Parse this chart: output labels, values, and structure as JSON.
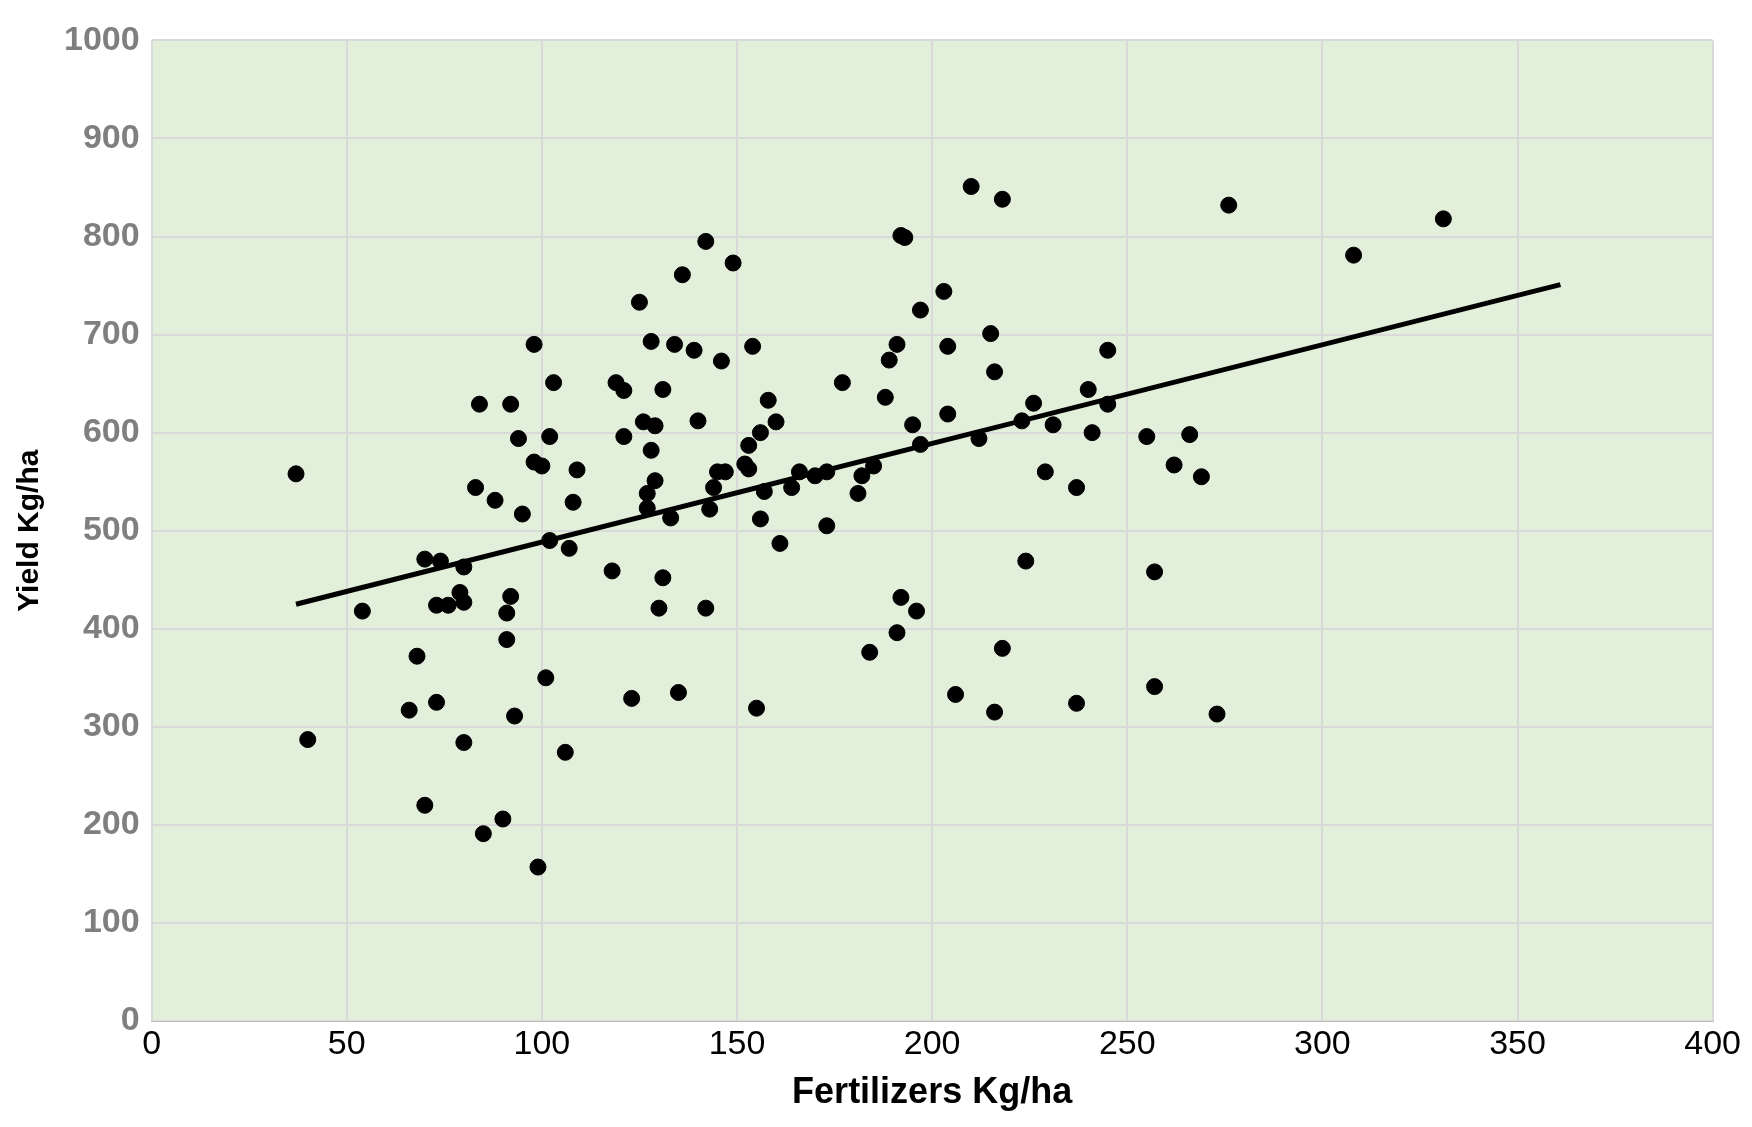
{
  "chart_data": {
    "type": "scatter",
    "xlabel": "Fertilizers Kg/ha",
    "ylabel": "Yield Kg/ha",
    "xlim": [
      0,
      400
    ],
    "xticks": [
      0,
      50,
      100,
      150,
      200,
      250,
      300,
      350,
      400
    ],
    "ylim": [
      0,
      1000
    ],
    "yticks": [
      0,
      100,
      200,
      300,
      400,
      500,
      600,
      700,
      800,
      900,
      1000
    ],
    "grid": true,
    "legend": false,
    "marker": "circle",
    "series": [
      {
        "type": "scatter",
        "color": "#000000",
        "x": [
          37,
          40,
          54,
          68,
          66,
          70,
          74,
          73,
          76,
          73,
          70,
          80,
          79,
          80,
          80,
          84,
          83,
          88,
          85,
          90,
          92,
          94,
          95,
          92,
          91,
          91,
          93,
          98,
          98,
          100,
          99,
          101,
          103,
          102,
          102,
          107,
          108,
          109,
          106,
          118,
          119,
          121,
          121,
          123,
          125,
          126,
          127,
          127,
          128,
          128,
          129,
          129,
          130,
          131,
          131,
          133,
          134,
          135,
          136,
          139,
          140,
          142,
          142,
          143,
          144,
          145,
          147,
          146,
          149,
          152,
          153,
          153,
          154,
          156,
          155,
          156,
          157,
          158,
          160,
          161,
          164,
          166,
          170,
          173,
          173,
          177,
          181,
          182,
          185,
          184,
          188,
          189,
          191,
          192,
          193,
          192,
          191,
          195,
          196,
          197,
          197,
          203,
          204,
          204,
          206,
          210,
          212,
          215,
          216,
          216,
          218,
          218,
          223,
          224,
          226,
          229,
          231,
          237,
          237,
          240,
          241,
          245,
          245,
          255,
          257,
          257,
          262,
          266,
          269,
          273,
          276,
          308,
          331
        ],
        "values": [
          558,
          287,
          418,
          372,
          317,
          471,
          469,
          424,
          424,
          325,
          220,
          463,
          437,
          427,
          284,
          629,
          544,
          531,
          191,
          206,
          629,
          594,
          517,
          433,
          416,
          389,
          311,
          690,
          570,
          566,
          157,
          350,
          651,
          596,
          490,
          482,
          529,
          562,
          274,
          459,
          651,
          643,
          596,
          329,
          733,
          611,
          538,
          523,
          693,
          582,
          607,
          551,
          421,
          452,
          644,
          513,
          690,
          335,
          761,
          684,
          612,
          795,
          421,
          522,
          544,
          560,
          560,
          673,
          773,
          568,
          587,
          563,
          688,
          600,
          319,
          512,
          540,
          633,
          611,
          487,
          544,
          560,
          556,
          560,
          505,
          651,
          538,
          556,
          566,
          376,
          636,
          674,
          690,
          801,
          799,
          432,
          396,
          608,
          418,
          725,
          588,
          744,
          688,
          619,
          333,
          851,
          594,
          701,
          662,
          315,
          838,
          380,
          612,
          469,
          630,
          560,
          608,
          544,
          324,
          644,
          600,
          684,
          629,
          596,
          458,
          341,
          567,
          598,
          555,
          313,
          832,
          781,
          818
        ]
      },
      {
        "type": "line",
        "color": "#000000",
        "marker": "none",
        "x": [
          37,
          361
        ],
        "values": [
          425,
          751
        ]
      }
    ]
  }
}
